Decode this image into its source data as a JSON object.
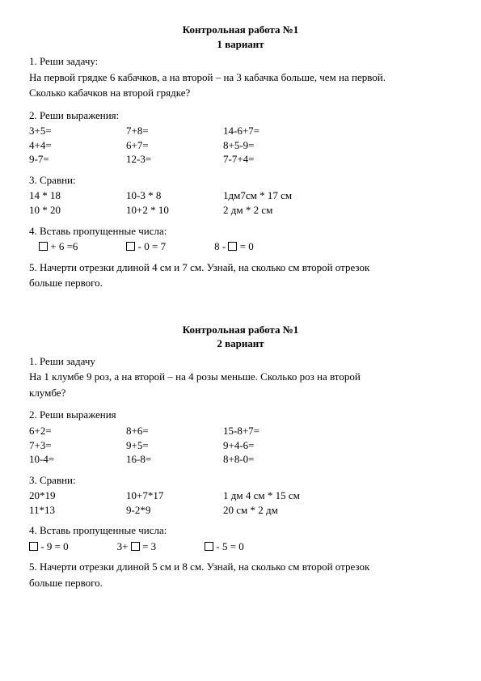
{
  "v1": {
    "title": "Контрольная работа №1",
    "subtitle": "1 вариант",
    "q1": {
      "head": "1. Реши задачу:",
      "l1": "На первой грядке 6 кабачков, а на второй – на 3 кабачка больше, чем на первой.",
      "l2": "Сколько кабачков на второй грядке?"
    },
    "q2": {
      "head": "2. Реши выражения:",
      "r1": {
        "a": "3+5=",
        "b": "7+8=",
        "c": "14-6+7="
      },
      "r2": {
        "a": "4+4=",
        "b": "6+7=",
        "c": "8+5-9="
      },
      "r3": {
        "a": "9-7=",
        "b": "12-3=",
        "c": "7-7+4="
      }
    },
    "q3": {
      "head": "3. Сравни:",
      "r1": {
        "a": "14 * 18",
        "b": "10-3 * 8",
        "c": "1дм7см * 17 см"
      },
      "r2": {
        "a": "10 * 20",
        "b": "10+2 * 10",
        "c": "2 дм * 2 см"
      }
    },
    "q4": {
      "head": "4.  Вставь пропущенные числа:",
      "a_post": " + 6 =6",
      "b_post": " - 0 = 7",
      "c_pre": "8 - ",
      "c_post": " = 0"
    },
    "q5": {
      "l1": " 5.  Начерти отрезки длиной 4 см и 7 см. Узнай, на сколько см второй отрезок",
      "l2": "больше первого."
    }
  },
  "v2": {
    "title": "Контрольная работа №1",
    "subtitle": "2 вариант",
    "q1": {
      "head": "1. Реши задачу",
      "l1": "На 1 клумбе 9 роз, а на второй – на 4 розы меньше. Сколько роз на второй",
      "l2": "клумбе?"
    },
    "q2": {
      "head": "2. Реши выражения",
      "r1": {
        "a": "6+2=",
        "b": "8+6=",
        "c": "15-8+7="
      },
      "r2": {
        "a": "7+3=",
        "b": "9+5=",
        "c": "9+4-6="
      },
      "r3": {
        "a": "10-4=",
        "b": "16-8=",
        "c": "8+8-0="
      }
    },
    "q3": {
      "head": "3. Сравни:",
      "r1": {
        "a": "20*19",
        "b": "10+7*17",
        "c": "1 дм 4 см * 15 см"
      },
      "r2": {
        "a": "11*13",
        "b": "9-2*9",
        "c": "20 см * 2 дм"
      }
    },
    "q4": {
      "head": "4. Вставь пропущенные числа:",
      "a_post": " - 9 = 0",
      "b_pre": "3+ ",
      "b_post": " = 3",
      "c_post": " - 5 = 0"
    },
    "q5": {
      "l1": " 5. Начерти отрезки длиной 5 см и 8 см. Узнай, на сколько см второй отрезок",
      "l2": "больше первого."
    }
  }
}
